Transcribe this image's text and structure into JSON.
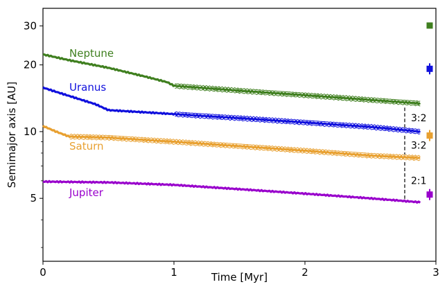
{
  "chart_data": {
    "type": "line",
    "xlabel": "Time [Myr]",
    "ylabel": "Semimajor axis [AU]",
    "xlim": [
      0,
      3
    ],
    "ylim": [
      2.6,
      36
    ],
    "yscale": "log",
    "x_ticks": [
      0,
      1,
      2,
      3
    ],
    "x_tick_labels": [
      "0",
      "1",
      "2",
      "3"
    ],
    "y_ticks": [
      5,
      10,
      20,
      30
    ],
    "y_tick_labels": [
      "5",
      "10",
      "20",
      "30"
    ],
    "series": [
      {
        "name": "Neptune",
        "color": "#3f7f1f",
        "x": [
          0,
          0.2,
          0.5,
          0.8,
          0.95,
          1.0,
          1.5,
          2.0,
          2.5,
          2.88
        ],
        "y": [
          22.3,
          21.0,
          19.4,
          17.6,
          16.7,
          16.1,
          15.3,
          14.6,
          13.9,
          13.4
        ]
      },
      {
        "name": "Uranus",
        "color": "#1010dd",
        "x": [
          0,
          0.15,
          0.4,
          0.5,
          0.8,
          1.0,
          1.5,
          2.0,
          2.5,
          2.88
        ],
        "y": [
          15.8,
          14.8,
          13.3,
          12.5,
          12.2,
          12.0,
          11.5,
          11.0,
          10.5,
          10.0
        ]
      },
      {
        "name": "Saturn",
        "color": "#e8a030",
        "x": [
          0,
          0.1,
          0.2,
          0.5,
          1.0,
          1.5,
          2.0,
          2.5,
          2.88
        ],
        "y": [
          10.6,
          10.0,
          9.5,
          9.4,
          9.0,
          8.6,
          8.2,
          7.8,
          7.6
        ]
      },
      {
        "name": "Jupiter",
        "color": "#9900cc",
        "x": [
          0,
          0.5,
          1.0,
          1.5,
          2.0,
          2.5,
          2.88
        ],
        "y": [
          5.95,
          5.9,
          5.75,
          5.5,
          5.25,
          5.0,
          4.8
        ]
      }
    ],
    "observed": [
      {
        "name": "Neptune",
        "value": 30.1,
        "color": "#3f7f1f"
      },
      {
        "name": "Uranus",
        "value": 19.2,
        "color": "#1010dd"
      },
      {
        "name": "Saturn",
        "value": 9.6,
        "color": "#e8a030"
      },
      {
        "name": "Jupiter",
        "value": 5.2,
        "color": "#9900cc"
      }
    ],
    "resonances": [
      {
        "label": "3:2"
      },
      {
        "label": "3:2"
      },
      {
        "label": "2:1"
      }
    ]
  }
}
